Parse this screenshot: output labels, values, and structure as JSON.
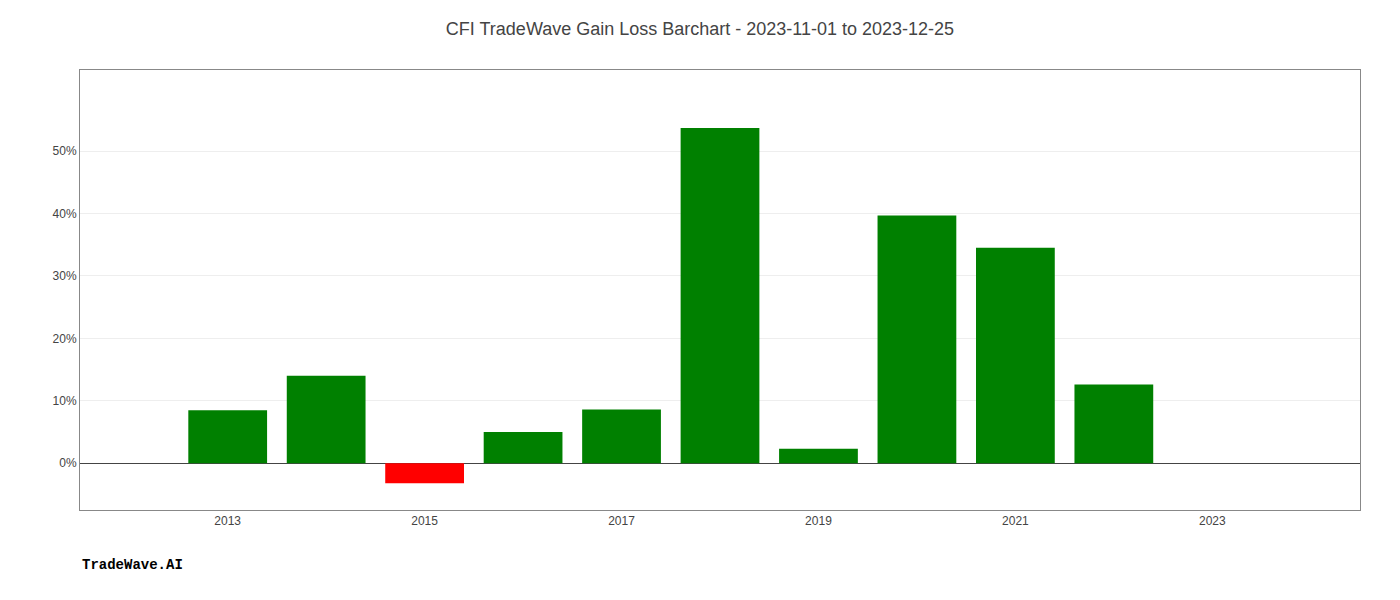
{
  "chart_data": {
    "type": "bar",
    "title": "CFI TradeWave Gain Loss Barchart - 2023-11-01 to 2023-12-25",
    "annotations": [
      "TradeWave.AI"
    ],
    "x": [
      2013,
      2014,
      2015,
      2016,
      2017,
      2018,
      2019,
      2020,
      2021,
      2022
    ],
    "values": [
      0.085,
      0.14,
      -0.032,
      0.05,
      0.086,
      0.537,
      0.023,
      0.397,
      0.345,
      0.126
    ],
    "colors": [
      "#008000",
      "#008000",
      "#ff0000",
      "#008000",
      "#008000",
      "#008000",
      "#008000",
      "#008000",
      "#008000",
      "#008000"
    ],
    "xlim": [
      2011.5,
      2024.5
    ],
    "xticks": [
      2013,
      2015,
      2017,
      2019,
      2021,
      2023
    ],
    "ylim": [
      -0.075,
      0.63
    ],
    "yticks": [
      {
        "value": 0.0,
        "label": "0%"
      },
      {
        "value": 0.1,
        "label": "10%"
      },
      {
        "value": 0.2,
        "label": "20%"
      },
      {
        "value": 0.3,
        "label": "30%"
      },
      {
        "value": 0.4,
        "label": "40%"
      },
      {
        "value": 0.5,
        "label": "50%"
      }
    ],
    "grid": true
  }
}
